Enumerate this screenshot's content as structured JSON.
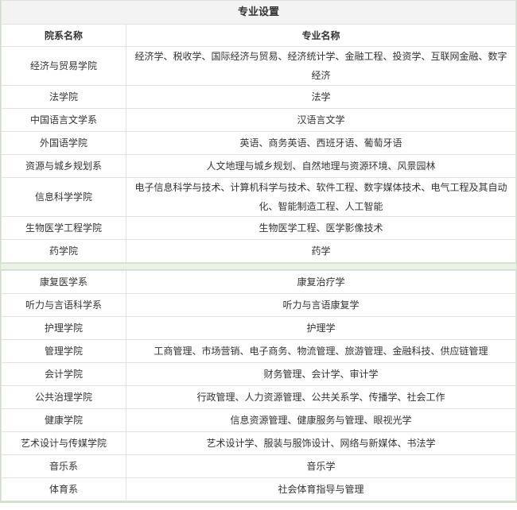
{
  "table": {
    "title": "专业设置",
    "header": [
      "院系名称",
      "专业名称"
    ],
    "sections": [
      {
        "rows": [
          [
            "经济与贸易学院",
            "经济学、税收学、国际经济与贸易、经济统计学、金融工程、投资学、互联网金融、数字经济"
          ],
          [
            "法学院",
            "法学"
          ],
          [
            "中国语言文学系",
            "汉语言文学"
          ],
          [
            "外国语学院",
            "英语、商务英语、西班牙语、葡萄牙语"
          ],
          [
            "资源与城乡规划系",
            "人文地理与城乡规划、自然地理与资源环境、风景园林"
          ],
          [
            "信息科学学院",
            "电子信息科学与技术、计算机科学与技术、软件工程、数字媒体技术、电气工程及其自动化、智能制造工程、人工智能"
          ],
          [
            "生物医学工程学院",
            "生物医学工程、医学影像技术"
          ],
          [
            "药学院",
            "药学"
          ]
        ]
      },
      {
        "rows": [
          [
            "康复医学系",
            "康复治疗学"
          ],
          [
            "听力与言语科学系",
            "听力与言语康复学"
          ],
          [
            "护理学院",
            "护理学"
          ],
          [
            "管理学院",
            "工商管理、市场营销、电子商务、物流管理、旅游管理、金融科技、供应链管理"
          ],
          [
            "会计学院",
            "财务管理、会计学、审计学"
          ],
          [
            "公共治理学院",
            "行政管理、人力资源管理、公共关系学、传播学、社会工作"
          ],
          [
            "健康学院",
            "信息资源管理、健康服务与管理、眼视光学"
          ],
          [
            "艺术设计与传媒学院",
            "艺术设计学、服装与服饰设计、网络与新媒体、书法学"
          ],
          [
            "音乐系",
            "音乐学"
          ],
          [
            "体育系",
            "社会体育指导与管理"
          ]
        ]
      }
    ]
  }
}
